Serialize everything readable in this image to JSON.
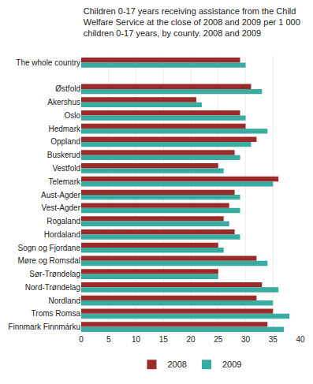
{
  "chart_data": {
    "type": "bar",
    "orientation": "horizontal",
    "title": "Children 0-17 years receiving assistance from the Child\nWelfare Service at the close of 2008 and 2009 per 1 000\nchildren 0-17 years, by county. 2008 and 2009",
    "categories": [
      "The whole country",
      null,
      "Østfold",
      "Akershus",
      "Oslo",
      "Hedmark",
      "Oppland",
      "Buskerud",
      "Vestfold",
      "Telemark",
      "Aust-Agder",
      "Vest-Agder",
      "Rogaland",
      "Hordaland",
      "Sogn og Fjordane",
      "Møre og Romsdal",
      "Sør-Trøndelag",
      "Nord-Trøndelag",
      "Nordland",
      "Troms Romsa",
      "Finnmark Finnmárku"
    ],
    "series": [
      {
        "name": "2008",
        "color": "#9B2B2B",
        "values": [
          29,
          null,
          31,
          21,
          29,
          30,
          32,
          28,
          25,
          36,
          28,
          27,
          26,
          28,
          25,
          32,
          25,
          33,
          32,
          35,
          34
        ]
      },
      {
        "name": "2009",
        "color": "#3AABA0",
        "values": [
          30,
          null,
          33,
          22,
          30,
          34,
          31,
          29,
          26,
          35,
          29,
          29,
          27,
          29,
          26,
          34,
          25,
          36,
          35,
          38,
          37
        ]
      }
    ],
    "xlim": [
      0,
      40
    ],
    "xticks": [
      0,
      5,
      10,
      15,
      20,
      25,
      30,
      35,
      40
    ],
    "grid": true,
    "legend": "bottom"
  }
}
